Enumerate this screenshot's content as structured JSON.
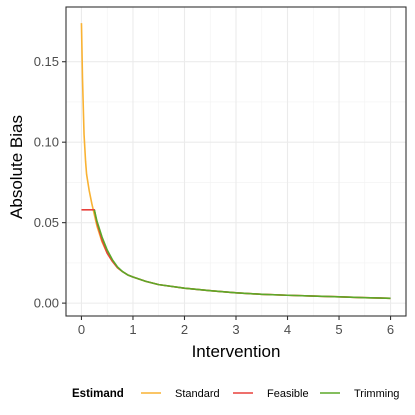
{
  "chart_data": {
    "type": "line",
    "xlabel": "Intervention",
    "ylabel": "Absolute Bias",
    "xlim": [
      -0.3,
      6.3
    ],
    "ylim": [
      -0.008,
      0.184
    ],
    "x_ticks": [
      0,
      1,
      2,
      3,
      4,
      5,
      6
    ],
    "x_tick_labels": [
      "0",
      "1",
      "2",
      "3",
      "4",
      "5",
      "6"
    ],
    "y_ticks": [
      0.0,
      0.05,
      0.1,
      0.15
    ],
    "y_tick_labels": [
      "0.00",
      "0.05",
      "0.10",
      "0.15"
    ],
    "grid": true,
    "legend": {
      "title": "Estimand",
      "position": "bottom"
    },
    "series": [
      {
        "name": "Standard",
        "color": "#F9B233",
        "x": [
          0.0,
          0.02,
          0.05,
          0.08,
          0.1,
          0.15,
          0.2,
          0.25,
          0.3,
          0.4,
          0.5,
          0.6,
          0.7,
          0.8,
          0.9,
          1.0,
          1.25,
          1.5,
          2.0,
          2.5,
          3.0,
          3.5,
          4.0,
          4.5,
          5.0,
          5.5,
          6.0
        ],
        "y": [
          0.174,
          0.14,
          0.105,
          0.088,
          0.08,
          0.07,
          0.062,
          0.055,
          0.048,
          0.038,
          0.031,
          0.026,
          0.022,
          0.0195,
          0.0175,
          0.0162,
          0.0135,
          0.0115,
          0.0093,
          0.0077,
          0.0064,
          0.0055,
          0.0049,
          0.0044,
          0.0039,
          0.0034,
          0.003
        ]
      },
      {
        "name": "Feasible",
        "color": "#E8413C",
        "x": [
          0.0,
          0.05,
          0.1,
          0.15,
          0.2,
          0.25,
          0.3,
          0.4,
          0.5,
          0.6,
          0.7,
          0.8,
          0.9,
          1.0,
          1.25,
          1.5,
          2.0,
          2.5,
          3.0,
          3.5,
          4.0,
          4.5,
          5.0,
          5.5,
          6.0
        ],
        "y": [
          0.058,
          0.058,
          0.058,
          0.058,
          0.058,
          0.058,
          0.05,
          0.039,
          0.031,
          0.026,
          0.022,
          0.0195,
          0.0175,
          0.0162,
          0.0135,
          0.0115,
          0.0093,
          0.0077,
          0.0064,
          0.0055,
          0.0049,
          0.0044,
          0.0039,
          0.0034,
          0.003
        ]
      },
      {
        "name": "Trimming",
        "color": "#5BA829",
        "x": [
          0.25,
          0.3,
          0.4,
          0.5,
          0.6,
          0.7,
          0.8,
          0.9,
          1.0,
          1.25,
          1.5,
          2.0,
          2.5,
          3.0,
          3.5,
          4.0,
          4.5,
          5.0,
          5.5,
          6.0
        ],
        "y": [
          0.058,
          0.051,
          0.041,
          0.033,
          0.027,
          0.0225,
          0.0195,
          0.0175,
          0.0162,
          0.0135,
          0.0115,
          0.0093,
          0.0077,
          0.0064,
          0.0055,
          0.0049,
          0.0044,
          0.0039,
          0.0034,
          0.003
        ]
      }
    ]
  }
}
